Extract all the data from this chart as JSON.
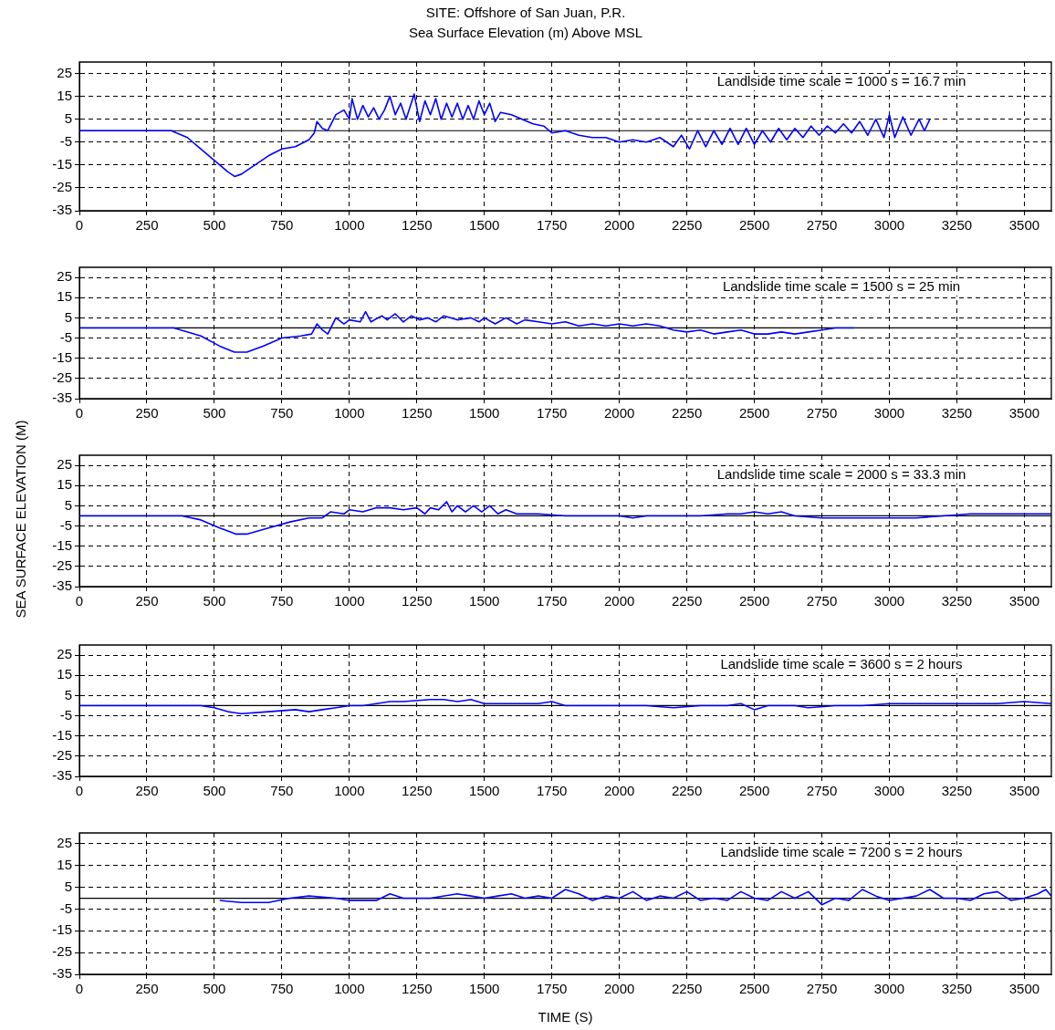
{
  "chart_data": [
    {
      "type": "line",
      "title": "SITE: Offshore of San Juan, P.R.",
      "subtitle": "Sea Surface Elevation (m) Above MSL",
      "annotations": [
        "Landlside time scale = 1000 s = 16.7 min"
      ],
      "xlim": [
        0,
        3600
      ],
      "xticks": [
        0,
        250,
        500,
        750,
        1000,
        1250,
        1500,
        1750,
        2000,
        2250,
        2500,
        2750,
        3000,
        3250,
        3500
      ],
      "ylim": [
        -35,
        30
      ],
      "yticks": [
        -35,
        -25,
        -15,
        -5,
        5,
        15,
        25
      ],
      "grid": true,
      "legend": false,
      "marker": "none",
      "line_style": "solid",
      "ref_lines": [
        {
          "axis": "y",
          "value": 0,
          "color": "#000000"
        }
      ],
      "series": [
        {
          "color": "#0000ff",
          "x": [
            0,
            340,
            400,
            450,
            500,
            550,
            575,
            600,
            650,
            700,
            750,
            800,
            850,
            870,
            880,
            900,
            920,
            950,
            980,
            1000,
            1010,
            1030,
            1050,
            1070,
            1090,
            1110,
            1130,
            1150,
            1170,
            1190,
            1210,
            1240,
            1260,
            1280,
            1300,
            1320,
            1340,
            1360,
            1380,
            1400,
            1420,
            1440,
            1460,
            1480,
            1500,
            1520,
            1540,
            1560,
            1600,
            1640,
            1680,
            1720,
            1750,
            1800,
            1850,
            1900,
            1950,
            2000,
            2050,
            2100,
            2150,
            2200,
            2230,
            2260,
            2290,
            2320,
            2350,
            2380,
            2410,
            2440,
            2470,
            2500,
            2530,
            2560,
            2590,
            2620,
            2650,
            2680,
            2710,
            2740,
            2770,
            2800,
            2830,
            2860,
            2890,
            2920,
            2950,
            2980,
            3000,
            3020,
            3050,
            3080,
            3110,
            3130,
            3150
          ],
          "values": [
            0,
            0,
            -3,
            -8,
            -13,
            -18,
            -20,
            -19,
            -15,
            -11,
            -8,
            -7,
            -4,
            -1,
            4,
            1,
            0,
            7,
            9,
            5,
            14,
            5,
            11,
            6,
            10,
            5,
            9,
            15,
            7,
            12,
            5,
            16,
            4,
            13,
            7,
            14,
            5,
            12,
            6,
            12,
            5,
            11,
            5,
            13,
            7,
            12,
            4,
            8,
            7,
            5,
            3,
            2,
            -1,
            0,
            -2,
            -3,
            -3,
            -5,
            -4,
            -5,
            -3,
            -7,
            -2,
            -8,
            0,
            -7,
            0,
            -6,
            1,
            -6,
            1,
            -6,
            0,
            -5,
            1,
            -4,
            1,
            -3,
            2,
            -2,
            2,
            -1,
            3,
            -1,
            4,
            -2,
            5,
            -3,
            7,
            -3,
            6,
            -2,
            5,
            0,
            5
          ]
        }
      ]
    },
    {
      "type": "line",
      "annotations": [
        "Landslide time scale = 1500 s = 25 min"
      ],
      "xlim": [
        0,
        3600
      ],
      "xticks": [
        0,
        250,
        500,
        750,
        1000,
        1250,
        1500,
        1750,
        2000,
        2250,
        2500,
        2750,
        3000,
        3250,
        3500
      ],
      "ylim": [
        -35,
        30
      ],
      "yticks": [
        -35,
        -25,
        -15,
        -5,
        5,
        15,
        25
      ],
      "grid": true,
      "legend": false,
      "marker": "none",
      "line_style": "solid",
      "ref_lines": [
        {
          "axis": "y",
          "value": 0,
          "color": "#000000"
        }
      ],
      "series": [
        {
          "color": "#0000ff",
          "x": [
            0,
            350,
            450,
            520,
            575,
            620,
            680,
            750,
            820,
            860,
            880,
            900,
            920,
            950,
            980,
            1000,
            1040,
            1060,
            1080,
            1120,
            1140,
            1170,
            1200,
            1230,
            1260,
            1290,
            1320,
            1350,
            1400,
            1450,
            1480,
            1500,
            1540,
            1580,
            1620,
            1650,
            1700,
            1750,
            1800,
            1850,
            1900,
            1950,
            2000,
            2050,
            2100,
            2150,
            2200,
            2250,
            2300,
            2350,
            2400,
            2450,
            2500,
            2550,
            2600,
            2650,
            2700,
            2750,
            2800,
            2870
          ],
          "values": [
            0,
            0,
            -4,
            -9,
            -12,
            -12,
            -9,
            -5,
            -4,
            -3,
            2,
            -1,
            -3,
            5,
            2,
            4,
            3,
            8,
            3,
            6,
            4,
            7,
            3,
            6,
            4,
            5,
            3,
            6,
            4,
            5,
            3,
            5,
            2,
            5,
            2,
            4,
            3,
            2,
            3,
            1,
            2,
            1,
            2,
            1,
            2,
            1,
            -1,
            -2,
            -1,
            -3,
            -2,
            -1,
            -3,
            -3,
            -2,
            -3,
            -2,
            -1,
            0,
            0
          ]
        }
      ]
    },
    {
      "type": "line",
      "ylabel": "SEA SURFACE ELEVATION (M)",
      "annotations": [
        "Landslide time scale = 2000 s = 33.3 min"
      ],
      "xlim": [
        0,
        3600
      ],
      "xticks": [
        0,
        250,
        500,
        750,
        1000,
        1250,
        1500,
        1750,
        2000,
        2250,
        2500,
        2750,
        3000,
        3250,
        3500
      ],
      "ylim": [
        -35,
        30
      ],
      "yticks": [
        -35,
        -25,
        -15,
        -5,
        5,
        15,
        25
      ],
      "grid": true,
      "legend": false,
      "marker": "none",
      "line_style": "solid",
      "ref_lines": [
        {
          "axis": "y",
          "value": 0,
          "color": "#000000"
        }
      ],
      "series": [
        {
          "color": "#0000ff",
          "x": [
            0,
            380,
            450,
            520,
            580,
            620,
            700,
            780,
            850,
            900,
            930,
            980,
            1000,
            1050,
            1100,
            1150,
            1200,
            1250,
            1280,
            1300,
            1330,
            1360,
            1380,
            1400,
            1430,
            1460,
            1490,
            1520,
            1550,
            1580,
            1620,
            1700,
            1800,
            1900,
            2000,
            2050,
            2100,
            2300,
            2400,
            2450,
            2500,
            2550,
            2600,
            2650,
            2750,
            2900,
            3000,
            3100,
            3200,
            3300,
            3400,
            3500,
            3600
          ],
          "values": [
            0,
            0,
            -2,
            -6,
            -9,
            -9,
            -6,
            -3,
            -1,
            -1,
            2,
            1,
            3,
            2,
            4,
            4,
            3,
            4,
            1,
            4,
            3,
            7,
            2,
            5,
            2,
            5,
            2,
            5,
            1,
            3,
            1,
            1,
            0,
            0,
            0,
            -1,
            0,
            0,
            1,
            1,
            2,
            1,
            2,
            0,
            -1,
            -1,
            -1,
            -1,
            0,
            1,
            1,
            1,
            1
          ]
        }
      ]
    },
    {
      "type": "line",
      "annotations": [
        "Landslide time scale = 3600 s = 2 hours"
      ],
      "xlim": [
        0,
        3600
      ],
      "xticks": [
        0,
        250,
        500,
        750,
        1000,
        1250,
        1500,
        1750,
        2000,
        2250,
        2500,
        2750,
        3000,
        3250,
        3500
      ],
      "ylim": [
        -35,
        30
      ],
      "yticks": [
        -35,
        -25,
        -15,
        -5,
        5,
        15,
        25
      ],
      "grid": true,
      "legend": false,
      "marker": "none",
      "line_style": "solid",
      "ref_lines": [
        {
          "axis": "y",
          "value": 0,
          "color": "#000000"
        }
      ],
      "series": [
        {
          "color": "#0000ff",
          "x": [
            0,
            450,
            500,
            550,
            600,
            700,
            800,
            850,
            900,
            950,
            1000,
            1050,
            1100,
            1150,
            1200,
            1300,
            1350,
            1400,
            1450,
            1500,
            1600,
            1700,
            1750,
            1800,
            1900,
            2000,
            2100,
            2200,
            2300,
            2400,
            2450,
            2500,
            2550,
            2650,
            2700,
            2800,
            2900,
            3000,
            3100,
            3200,
            3300,
            3400,
            3500,
            3600
          ],
          "values": [
            0,
            0,
            -1,
            -3,
            -4,
            -3,
            -2,
            -3,
            -2,
            -1,
            0,
            0,
            1,
            2,
            2,
            3,
            3,
            2,
            3,
            1,
            1,
            1,
            2,
            0,
            0,
            0,
            0,
            -1,
            0,
            0,
            1,
            -2,
            0,
            0,
            -1,
            0,
            0,
            1,
            1,
            1,
            1,
            1,
            2,
            1
          ]
        }
      ]
    },
    {
      "type": "line",
      "xlabel": "TIME (S)",
      "annotations": [
        "Landslide time scale = 7200 s = 2 hours"
      ],
      "xlim": [
        0,
        3600
      ],
      "xticks": [
        0,
        250,
        500,
        750,
        1000,
        1250,
        1500,
        1750,
        2000,
        2250,
        2500,
        2750,
        3000,
        3250,
        3500
      ],
      "ylim": [
        -35,
        30
      ],
      "yticks": [
        -35,
        -25,
        -15,
        -5,
        5,
        15,
        25
      ],
      "grid": true,
      "legend": false,
      "marker": "none",
      "line_style": "solid",
      "ref_lines": [
        {
          "axis": "y",
          "value": 0,
          "color": "#000000"
        }
      ],
      "series": [
        {
          "color": "#0000ff",
          "x": [
            520,
            600,
            700,
            780,
            850,
            950,
            1000,
            1100,
            1150,
            1200,
            1300,
            1400,
            1450,
            1500,
            1550,
            1600,
            1650,
            1700,
            1750,
            1800,
            1850,
            1900,
            1950,
            2000,
            2050,
            2100,
            2150,
            2200,
            2250,
            2300,
            2350,
            2400,
            2450,
            2500,
            2550,
            2600,
            2650,
            2700,
            2750,
            2800,
            2850,
            2900,
            2950,
            3000,
            3050,
            3100,
            3150,
            3200,
            3250,
            3300,
            3350,
            3400,
            3450,
            3500,
            3550,
            3580,
            3600
          ],
          "values": [
            -1,
            -2,
            -2,
            0,
            1,
            0,
            -1,
            -1,
            2,
            0,
            0,
            2,
            1,
            0,
            1,
            2,
            0,
            1,
            0,
            4,
            2,
            -1,
            1,
            0,
            3,
            -1,
            1,
            0,
            3,
            -1,
            0,
            -1,
            3,
            0,
            -1,
            3,
            0,
            3,
            -3,
            0,
            -1,
            4,
            1,
            -1,
            0,
            1,
            4,
            0,
            0,
            -1,
            2,
            3,
            -1,
            0,
            2,
            4,
            1
          ]
        }
      ]
    }
  ]
}
